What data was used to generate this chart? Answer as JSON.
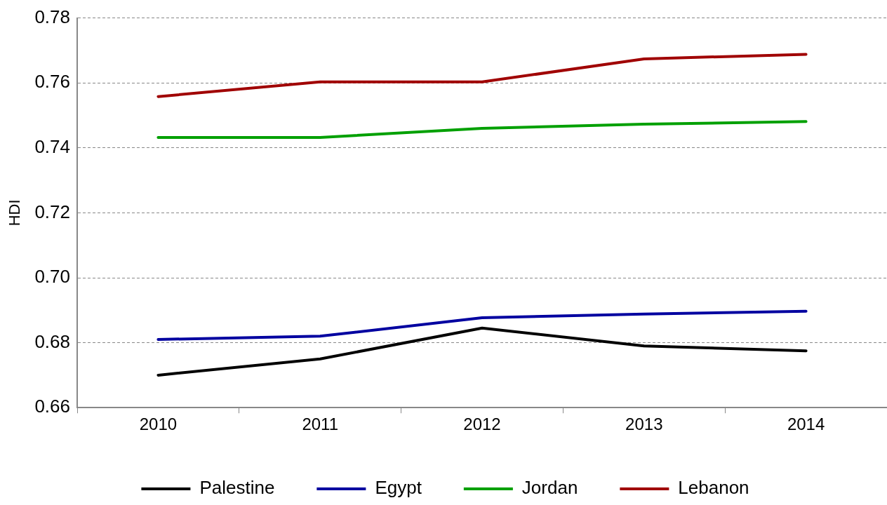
{
  "chart_data": {
    "type": "line",
    "ylabel": "HDI",
    "categories": [
      "2010",
      "2011",
      "2012",
      "2013",
      "2014"
    ],
    "series": [
      {
        "name": "Palestine",
        "color": "#000000",
        "values": [
          0.67,
          0.675,
          0.6845,
          0.679,
          0.6775
        ]
      },
      {
        "name": "Egypt",
        "color": "#0000a0",
        "values": [
          0.681,
          0.682,
          0.6877,
          0.6888,
          0.6897
        ]
      },
      {
        "name": "Jordan",
        "color": "#00a000",
        "values": [
          0.7432,
          0.7432,
          0.746,
          0.7473,
          0.7481
        ]
      },
      {
        "name": "Lebanon",
        "color": "#a00000",
        "values": [
          0.7558,
          0.7603,
          0.7603,
          0.7674,
          0.7688
        ]
      }
    ],
    "ylim": [
      0.66,
      0.78
    ],
    "yticks": [
      0.66,
      0.68,
      {
        "value": 0.7,
        "label": "0.70"
      },
      0.72,
      0.74,
      0.76,
      0.78
    ],
    "grid": "y",
    "legend": "bottom",
    "marker": "none",
    "line_style": "solid"
  }
}
